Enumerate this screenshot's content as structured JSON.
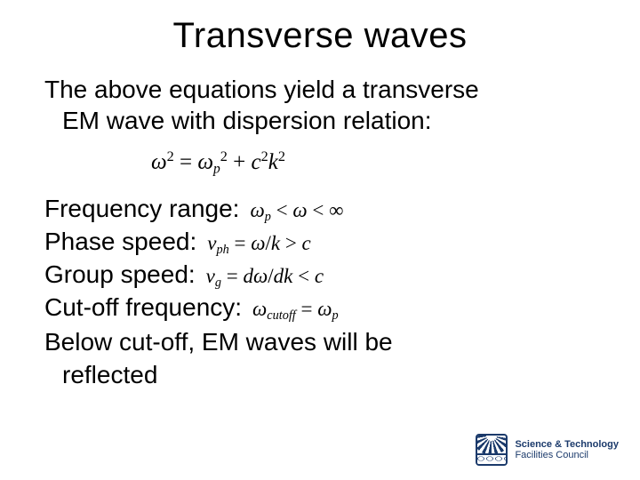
{
  "slide": {
    "title": "Transverse waves",
    "intro_line1": "The above equations yield a transverse",
    "intro_line2": "EM wave with dispersion relation:",
    "title_fontsize": 40,
    "body_fontsize": 28,
    "eq_fontsize": 25,
    "eq_fontsize_inline": 23,
    "text_color": "#000000",
    "background_color": "#ffffff"
  },
  "equations": {
    "dispersion_html": "<i>&omega;</i><sup>2</sup> <span class='up'>=</span> <i>&omega;</i><sub>p</sub><sup>2</sup> <span class='up'>+</span> <i>c</i><sup>2</sup><i>k</i><sup>2</sup>",
    "frequency_range_html": "<i>&omega;</i><sub>p</sub> <span class='up'>&lt;</span> <i>&omega;</i> <span class='up'>&lt;</span> <span class='up'>&infin;</span>",
    "phase_speed_html": "<i>v</i><sub>ph</sub> <span class='up'>=</span> <i>&omega;</i><span class='up'>/</span><i>k</i> <span class='up'>&gt;</span> <i>c</i>",
    "group_speed_html": "<i>v</i><sub>g</sub> <span class='up'>=</span> <i>d&omega;</i><span class='up'>/</span><i>dk</i> <span class='up'>&lt;</span> <i>c</i>",
    "cutoff_html": "<i>&omega;</i><sub>cutoff</sub> <span class='up'>=</span> <i>&omega;</i><sub>p</sub>"
  },
  "labels": {
    "frequency_range": "Frequency range:",
    "phase_speed": "Phase speed:",
    "group_speed": "Group speed:",
    "cutoff": "Cut-off frequency:",
    "below_line1": "Below cut-off, EM waves will be",
    "below_line2": "reflected"
  },
  "logo": {
    "line1": "Science & Technology",
    "line2": "Facilities Council",
    "color": "#1b3a6b"
  }
}
